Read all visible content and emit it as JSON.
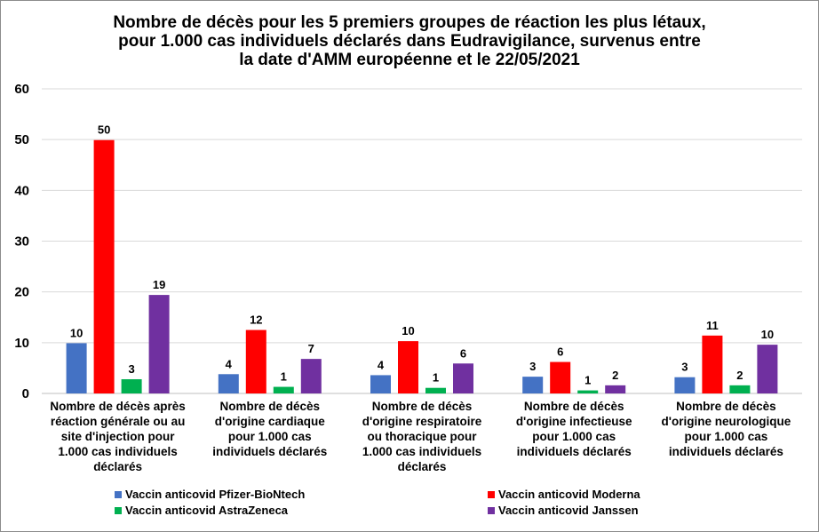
{
  "chart_data": {
    "type": "bar",
    "title_lines": [
      "Nombre de décès pour les 5 premiers groupes de réaction les plus létaux,",
      "pour 1.000 cas individuels déclarés dans Eudravigilance, survenus entre",
      "la date d'AMM européenne et le 22/05/2021"
    ],
    "ylim": [
      0,
      60
    ],
    "yticks": [
      "0",
      "10",
      "20",
      "30",
      "40",
      "50",
      "60"
    ],
    "grid": true,
    "legend_position": "bottom",
    "categories": [
      [
        "Nombre de décès après",
        "réaction générale ou au",
        "site d'injection pour",
        "1.000 cas individuels",
        "déclarés"
      ],
      [
        "Nombre de décès",
        "d'origine cardiaque",
        "pour 1.000 cas",
        "individuels déclarés"
      ],
      [
        "Nombre de décès",
        "d'origine respiratoire",
        "ou thoracique pour",
        "1.000 cas individuels",
        "déclarés"
      ],
      [
        "Nombre de décès",
        "d'origine infectieuse",
        "pour 1.000 cas",
        "individuels déclarés"
      ],
      [
        "Nombre de décès",
        "d'origine neurologique",
        "pour 1.000 cas",
        "individuels déclarés"
      ]
    ],
    "series": [
      {
        "name": "Vaccin anticovid Pfizer-BioNtech",
        "color": "#4472C4",
        "values": [
          9.9,
          3.8,
          3.6,
          3.3,
          3.2
        ],
        "labels": [
          "10",
          "4",
          "4",
          "3",
          "3"
        ]
      },
      {
        "name": "Vaccin anticovid Moderna",
        "color": "#FF0000",
        "values": [
          49.9,
          12.5,
          10.3,
          6.2,
          11.4
        ],
        "labels": [
          "50",
          "12",
          "10",
          "6",
          "11"
        ]
      },
      {
        "name": "Vaccin anticovid  AstraZeneca",
        "color": "#00B050",
        "values": [
          2.8,
          1.3,
          1.1,
          0.6,
          1.6
        ],
        "labels": [
          "3",
          "1",
          "1",
          "1",
          "2"
        ]
      },
      {
        "name": "Vaccin anticovid  Janssen",
        "color": "#7030A0",
        "values": [
          19.4,
          6.8,
          5.9,
          1.6,
          9.6
        ],
        "labels": [
          "19",
          "7",
          "6",
          "2",
          "10"
        ]
      }
    ]
  }
}
